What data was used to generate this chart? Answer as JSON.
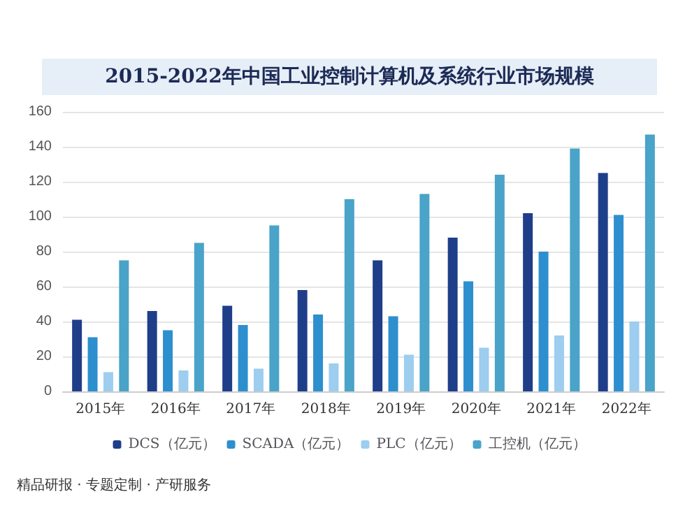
{
  "chart_data": {
    "type": "bar",
    "title": "2015-2022年中国工业控制计算机及系统行业市场规模",
    "categories": [
      "2015年",
      "2016年",
      "2017年",
      "2018年",
      "2019年",
      "2020年",
      "2021年",
      "2022年"
    ],
    "series": [
      {
        "name": "DCS（亿元）",
        "color": "#1f3e8a",
        "values": [
          41,
          46,
          49,
          58,
          75,
          88,
          102,
          125
        ]
      },
      {
        "name": "SCADA（亿元）",
        "color": "#2e8fcf",
        "values": [
          31,
          35,
          38,
          44,
          43,
          63,
          80,
          101
        ]
      },
      {
        "name": "PLC（亿元）",
        "color": "#9dcdef",
        "values": [
          11,
          12,
          13,
          16,
          21,
          25,
          32,
          40
        ]
      },
      {
        "name": "工控机（亿元）",
        "color": "#4aa3c8",
        "values": [
          75,
          85,
          95,
          110,
          113,
          124,
          139,
          147
        ]
      }
    ],
    "ylim": [
      0,
      160
    ],
    "yticks": [
      0,
      20,
      40,
      60,
      80,
      100,
      120,
      140,
      160
    ],
    "grid": "y",
    "legend": "bottom",
    "annotations": [
      "精品研报 · 专题定制 · 产研服务"
    ]
  }
}
